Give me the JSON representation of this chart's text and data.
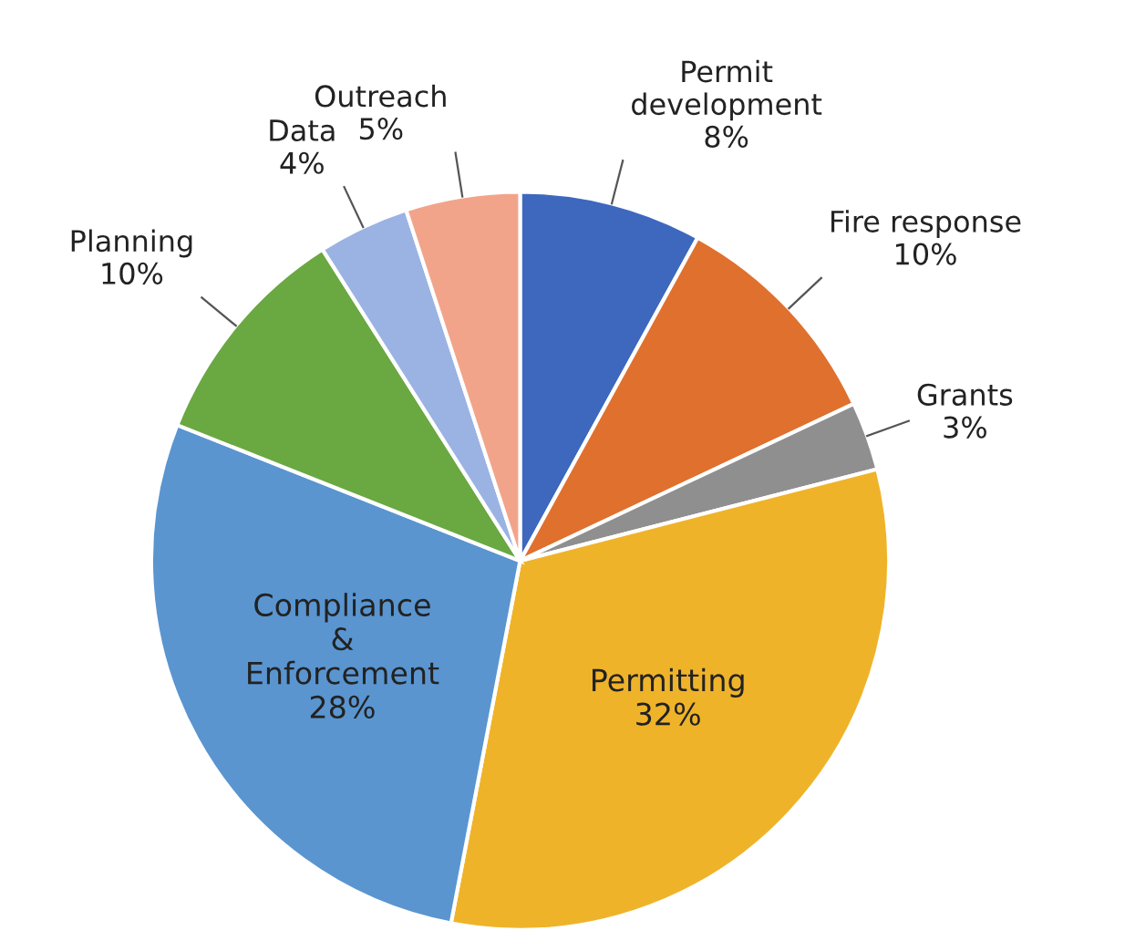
{
  "chart_data": {
    "type": "pie",
    "categories": [
      "Permit development",
      "Fire response",
      "Grants",
      "Permitting",
      "Compliance & Enforcement",
      "Planning",
      "Data",
      "Outreach"
    ],
    "values": [
      8,
      10,
      3,
      32,
      28,
      10,
      4,
      5
    ],
    "value_labels": [
      "8%",
      "10%",
      "3%",
      "32%",
      "28%",
      "10%",
      "4%",
      "5%"
    ],
    "colors": [
      "#3d68bd",
      "#e0702e",
      "#8f8f8f",
      "#efb32a",
      "#5a95d0",
      "#6aa842",
      "#9bb3e3",
      "#f2a48a"
    ]
  }
}
